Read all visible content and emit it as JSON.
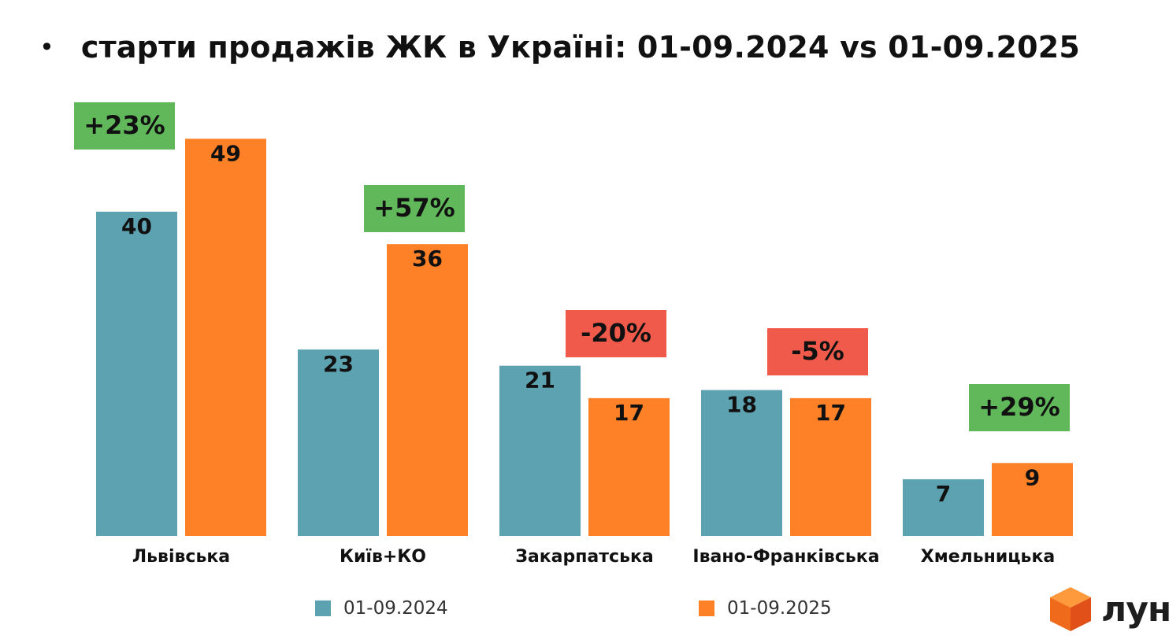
{
  "header": {
    "bullet": "•",
    "title": "старти продажів ЖК в Україні: 01-09.2024 vs 01-09.2025"
  },
  "colors": {
    "series_2024": "#5ca2b1",
    "series_2025": "#fe8128",
    "change_positive": "#60b85a",
    "change_negative": "#ef5a4b"
  },
  "chart_data": {
    "type": "bar",
    "categories": [
      "Львівська",
      "Київ+КО",
      "Закарпатська",
      "Івано-Франківська",
      "Хмельницька"
    ],
    "series": [
      {
        "name": "01-09.2024",
        "values": [
          40,
          23,
          21,
          18,
          7
        ]
      },
      {
        "name": "01-09.2025",
        "values": [
          49,
          36,
          17,
          17,
          9
        ]
      }
    ],
    "change_labels": [
      "+23%",
      "+57%",
      "-20%",
      "-5%",
      "+29%"
    ],
    "ylim": [
      0,
      50
    ],
    "grid": false,
    "legend_position": "bottom"
  },
  "logo": {
    "text": "лун",
    "icon": "cube-logo-icon"
  }
}
